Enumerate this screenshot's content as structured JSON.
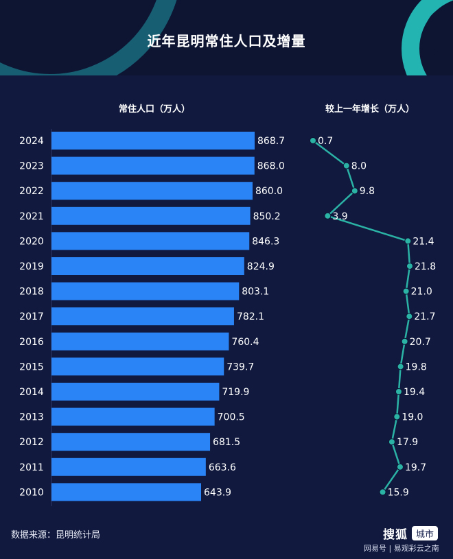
{
  "title": "近年昆明常住人口及增量",
  "left_header": "常住人口（万人）",
  "right_header": "较上一年增长（万人）",
  "source": "数据来源：昆明统计局",
  "brand": {
    "name": "搜狐",
    "tag": "城市"
  },
  "watermark": "网易号 | 易观彩云之南",
  "colors": {
    "background": "#111a3e",
    "bar": "#2b84f5",
    "line": "#2bb3a6",
    "point": "#2bb3a6"
  },
  "chart_data": [
    {
      "type": "bar",
      "orientation": "horizontal",
      "title": "常住人口（万人）",
      "categories": [
        "2024",
        "2023",
        "2022",
        "2021",
        "2020",
        "2019",
        "2018",
        "2017",
        "2016",
        "2015",
        "2014",
        "2013",
        "2012",
        "2011",
        "2010"
      ],
      "values": [
        868.7,
        868.0,
        860.0,
        850.2,
        846.3,
        824.9,
        803.1,
        782.1,
        760.4,
        739.7,
        719.9,
        700.5,
        681.5,
        663.6,
        643.9
      ],
      "value_labels": [
        "868.7",
        "868.0",
        "860.0",
        "850.2",
        "846.3",
        "824.9",
        "803.1",
        "782.1",
        "760.4",
        "739.7",
        "719.9",
        "700.5",
        "681.5",
        "663.6",
        "643.9"
      ],
      "grid": false
    },
    {
      "type": "line",
      "orientation": "vertical",
      "title": "较上一年增长（万人）",
      "categories": [
        "2024",
        "2023",
        "2022",
        "2021",
        "2020",
        "2019",
        "2018",
        "2017",
        "2016",
        "2015",
        "2014",
        "2013",
        "2012",
        "2011",
        "2010"
      ],
      "values": [
        0.7,
        8.0,
        9.8,
        3.9,
        21.4,
        21.8,
        21.0,
        21.7,
        20.7,
        19.8,
        19.4,
        19.0,
        17.9,
        19.7,
        15.9
      ],
      "value_labels": [
        "0.7",
        "8.0",
        "9.8",
        "3.9",
        "21.4",
        "21.8",
        "21.0",
        "21.7",
        "20.7",
        "19.8",
        "19.4",
        "19.0",
        "17.9",
        "19.7",
        "15.9"
      ],
      "grid": false
    }
  ]
}
